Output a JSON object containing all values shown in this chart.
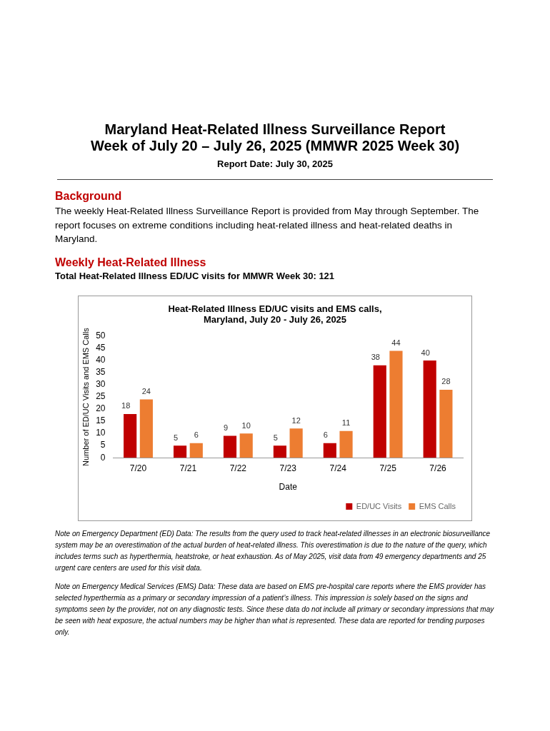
{
  "chart_data": {
    "type": "bar",
    "title": "Heat-Related Illness ED/UC visits and EMS calls, Maryland, July 20 - July 26, 2025",
    "xlabel": "Date",
    "ylabel": "Number of ED/UC Visits and EMS Calls",
    "categories": [
      "7/20",
      "7/21",
      "7/22",
      "7/23",
      "7/24",
      "7/25",
      "7/26"
    ],
    "series": [
      {
        "name": "ED/UC Visits",
        "color": "#c00000",
        "values": [
          18,
          5,
          9,
          5,
          6,
          38,
          40
        ]
      },
      {
        "name": "EMS Calls",
        "color": "#ed7d31",
        "values": [
          24,
          6,
          10,
          12,
          11,
          44,
          28
        ]
      }
    ],
    "ylim": [
      0,
      50
    ],
    "yticks": [
      0,
      5,
      10,
      15,
      20,
      25,
      30,
      35,
      40,
      45,
      50
    ],
    "grid": false,
    "legend": "bottom right",
    "data_labels": true,
    "annotations": [
      "Maryland Heat-Related Illness Surveillance Report",
      "Week of July 20 – July 26, 2025 (MMWR 2025 Week 30)",
      "Report Date: July 30, 2025",
      "Background",
      "The weekly Heat-Related Illness Surveillance Report is provided from May through September. The report focuses on extreme conditions including heat-related illness and heat-related deaths in Maryland.",
      "Weekly Heat-Related Illness",
      "Total Heat-Related Illness ED/UC visits for MMWR Week 30: 121",
      "Note on Emergency Department (ED) Data: The results from the query used to track heat-related illnesses in an electronic biosurveillance system may be an overestimation of the actual burden of heat-related illness. This overestimation is due to the nature of the query, which includes terms such as hyperthermia, heatstroke, or heat exhaustion. As of May 2025, visit data from 49 emergency departments and 25 urgent care centers are used for this visit data.",
      "Note on Emergency Medical Services (EMS) Data: These data are based on EMS pre-hospital care reports where the EMS provider has selected hyperthermia as a primary or secondary impression of a patient’s illness. This impression is solely based on the signs and symptoms seen by the provider, not on any diagnostic tests. Since these data do not include all primary or secondary impressions that may be seen with heat exposure, the actual numbers may be higher than what is represented. These data are reported for trending purposes only."
    ]
  }
}
